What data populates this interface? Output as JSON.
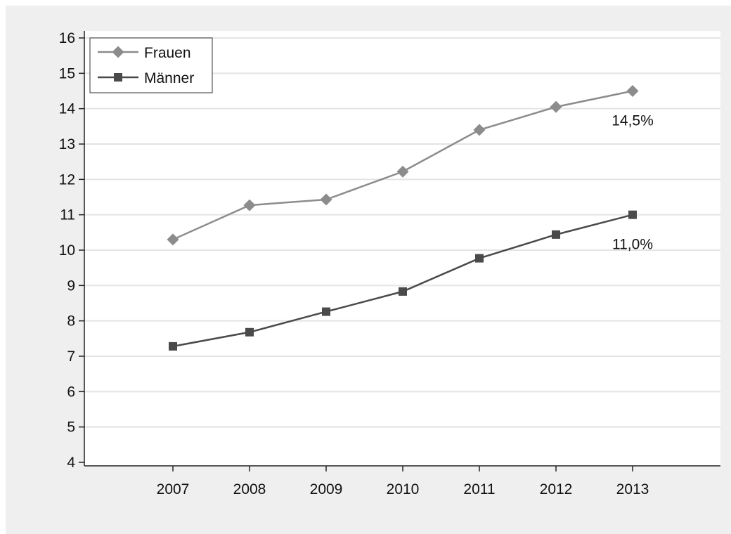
{
  "chart_data": {
    "type": "line",
    "title": "",
    "xlabel": "",
    "ylabel": "",
    "x": [
      "2007",
      "2008",
      "2009",
      "2010",
      "2011",
      "2012",
      "2013"
    ],
    "ylim": [
      4,
      16
    ],
    "yticks": [
      "4",
      "5",
      "6",
      "7",
      "8",
      "9",
      "10",
      "11",
      "12",
      "13",
      "14",
      "15",
      "16"
    ],
    "grid": true,
    "legend_position": "top-left",
    "series": [
      {
        "name": "Frauen",
        "values": [
          10.3,
          11.27,
          11.43,
          12.22,
          13.4,
          14.05,
          14.5
        ],
        "color": "#8c8c8c",
        "marker": "diamond",
        "end_label": "14,5%"
      },
      {
        "name": "Männer",
        "values": [
          7.28,
          7.68,
          8.26,
          8.83,
          9.77,
          10.44,
          11.0
        ],
        "color": "#4a4a4a",
        "marker": "square",
        "end_label": "11,0%"
      }
    ],
    "colors": {
      "background": "#efefef",
      "plot_area": "#ffffff",
      "gridline": "#e4e4e4",
      "axis": "#222222"
    }
  }
}
